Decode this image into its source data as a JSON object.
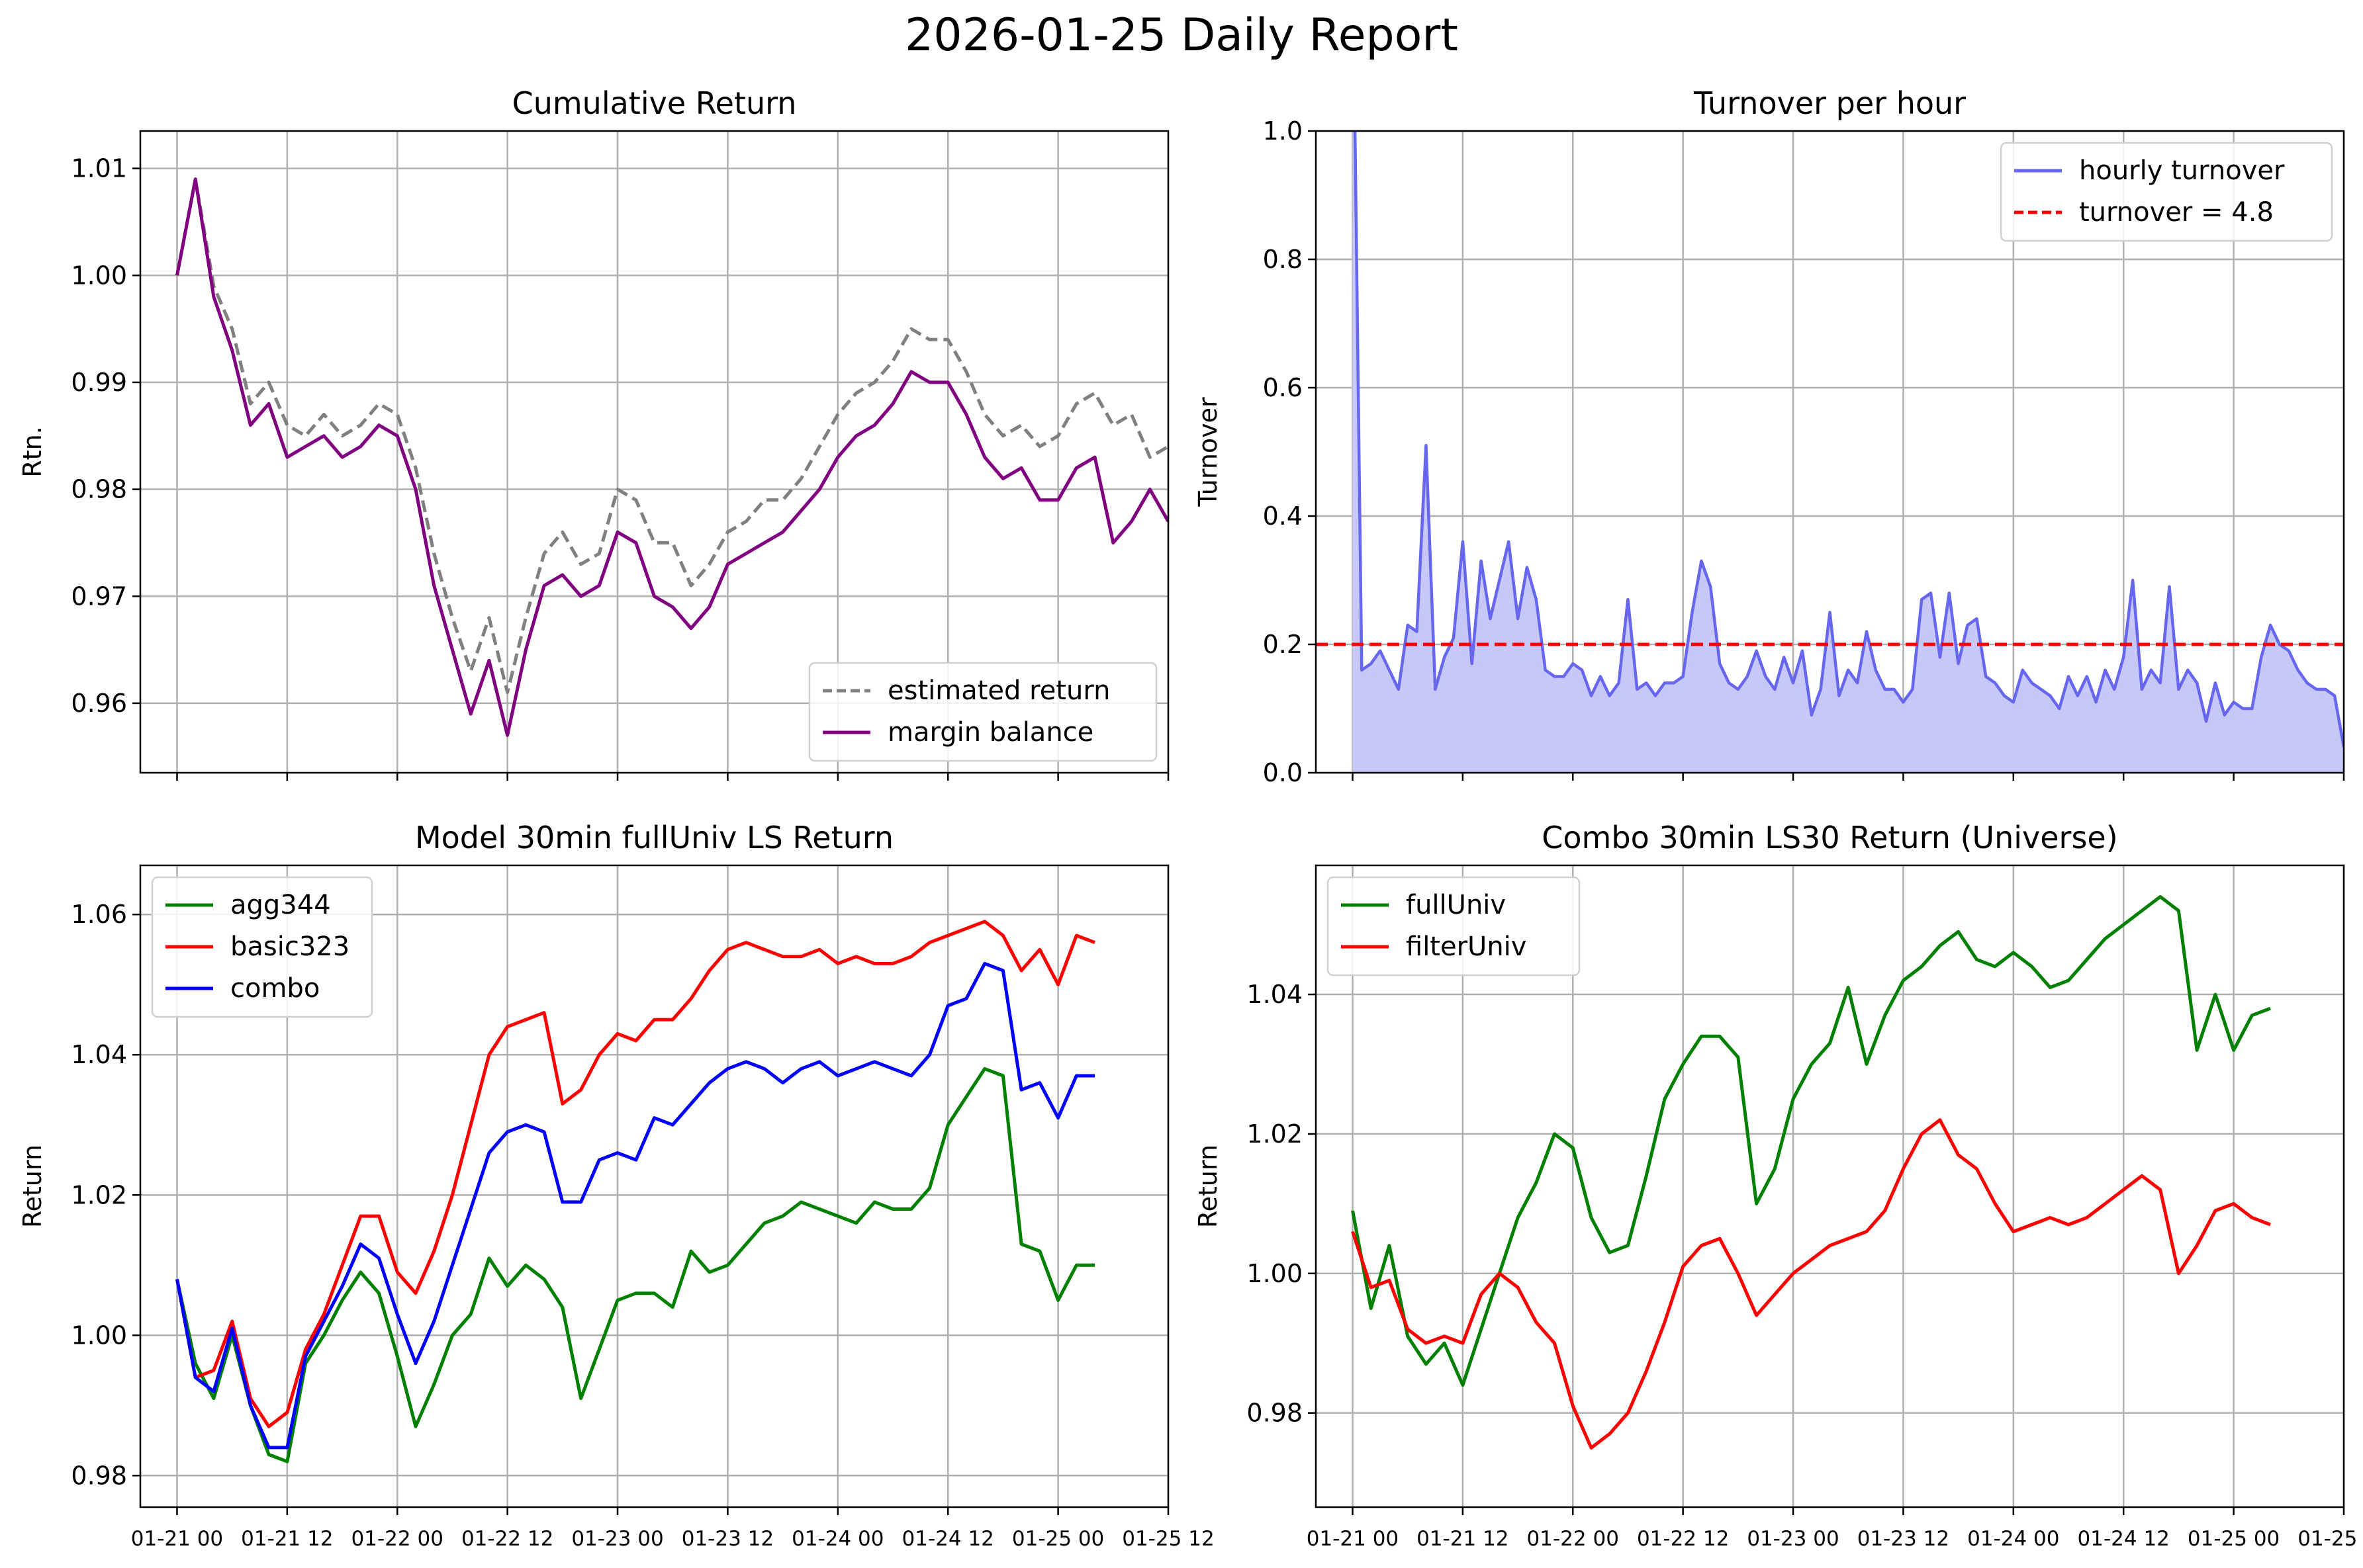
{
  "figure_title": "2026-01-25 Daily Report",
  "colors": {
    "estimated": "#808080",
    "margin": "#800080",
    "turnover": "#6666ee",
    "turnover_fill": "#c8c8f8",
    "threshold": "#ff0000",
    "agg344": "#008000",
    "basic323": "#ff0000",
    "combo": "#0000ff",
    "fullUniv": "#008000",
    "filterUniv": "#ff0000"
  },
  "x_ticks": [
    "01-21 00",
    "01-21 12",
    "01-22 00",
    "01-22 12",
    "01-23 00",
    "01-23 12",
    "01-24 00",
    "01-24 12",
    "01-25 00",
    "01-25 12"
  ],
  "chart_data": [
    {
      "id": "cum",
      "type": "line",
      "title": "Cumulative Return",
      "xlabel": "",
      "ylabel": "Rtn.",
      "xlim": [
        -4,
        108
      ],
      "ylim": [
        0.9535,
        1.0135
      ],
      "yticks": [
        "1.01",
        "1.00",
        "0.99",
        "0.98",
        "0.97",
        "0.96"
      ],
      "show_x_ticklabels": false,
      "legend": "lower right",
      "x_start": 0,
      "x_step": 2,
      "series": [
        {
          "name": "estimated return",
          "style": "dashed",
          "color_key": "estimated",
          "values": [
            1.0,
            1.009,
            0.999,
            0.995,
            0.988,
            0.99,
            0.986,
            0.985,
            0.987,
            0.985,
            0.986,
            0.988,
            0.987,
            0.982,
            0.974,
            0.968,
            0.963,
            0.968,
            0.961,
            0.968,
            0.974,
            0.976,
            0.973,
            0.974,
            0.98,
            0.979,
            0.975,
            0.975,
            0.971,
            0.973,
            0.976,
            0.977,
            0.979,
            0.979,
            0.981,
            0.984,
            0.987,
            0.989,
            0.99,
            0.992,
            0.995,
            0.994,
            0.994,
            0.991,
            0.987,
            0.985,
            0.986,
            0.984,
            0.985,
            0.988,
            0.989,
            0.986,
            0.987,
            0.983,
            0.984
          ]
        },
        {
          "name": "margin balance",
          "style": "solid",
          "color_key": "margin",
          "values": [
            1.0,
            1.009,
            0.998,
            0.993,
            0.986,
            0.988,
            0.983,
            0.984,
            0.985,
            0.983,
            0.984,
            0.986,
            0.985,
            0.98,
            0.971,
            0.965,
            0.959,
            0.964,
            0.957,
            0.965,
            0.971,
            0.972,
            0.97,
            0.971,
            0.976,
            0.975,
            0.97,
            0.969,
            0.967,
            0.969,
            0.973,
            0.974,
            0.975,
            0.976,
            0.978,
            0.98,
            0.983,
            0.985,
            0.986,
            0.988,
            0.991,
            0.99,
            0.99,
            0.987,
            0.983,
            0.981,
            0.982,
            0.979,
            0.979,
            0.982,
            0.983,
            0.975,
            0.977,
            0.98,
            0.977
          ]
        }
      ]
    },
    {
      "id": "turn",
      "type": "area",
      "title": "Turnover per hour",
      "xlabel": "",
      "ylabel": "Turnover",
      "xlim": [
        -4,
        108
      ],
      "ylim": [
        0.0,
        1.0
      ],
      "yticks": [
        "1.0",
        "0.8",
        "0.6",
        "0.4",
        "0.2",
        "0.0"
      ],
      "show_x_ticklabels": false,
      "legend": "upper right",
      "x_start": 0,
      "x_step": 1,
      "threshold": {
        "name": "turnover = 4.8",
        "value": 0.2
      },
      "series": [
        {
          "name": "hourly turnover",
          "style": "solid",
          "color_key": "turnover",
          "values": [
            1.3,
            0.16,
            0.17,
            0.19,
            0.16,
            0.13,
            0.23,
            0.22,
            0.51,
            0.13,
            0.18,
            0.21,
            0.36,
            0.17,
            0.33,
            0.24,
            0.3,
            0.36,
            0.24,
            0.32,
            0.27,
            0.16,
            0.15,
            0.15,
            0.17,
            0.16,
            0.12,
            0.15,
            0.12,
            0.14,
            0.27,
            0.13,
            0.14,
            0.12,
            0.14,
            0.14,
            0.15,
            0.25,
            0.33,
            0.29,
            0.17,
            0.14,
            0.13,
            0.15,
            0.19,
            0.15,
            0.13,
            0.18,
            0.14,
            0.19,
            0.09,
            0.13,
            0.25,
            0.12,
            0.16,
            0.14,
            0.22,
            0.16,
            0.13,
            0.13,
            0.11,
            0.13,
            0.27,
            0.28,
            0.18,
            0.28,
            0.17,
            0.23,
            0.24,
            0.15,
            0.14,
            0.12,
            0.11,
            0.16,
            0.14,
            0.13,
            0.12,
            0.1,
            0.15,
            0.12,
            0.15,
            0.11,
            0.16,
            0.13,
            0.18,
            0.3,
            0.13,
            0.16,
            0.14,
            0.29,
            0.13,
            0.16,
            0.14,
            0.08,
            0.14,
            0.09,
            0.11,
            0.1,
            0.1,
            0.18,
            0.23,
            0.2,
            0.19,
            0.16,
            0.14,
            0.13,
            0.13,
            0.12,
            0.04
          ]
        }
      ]
    },
    {
      "id": "model",
      "type": "line",
      "title": "Model 30min fullUniv LS Return",
      "xlabel": "",
      "ylabel": "Return",
      "xlim": [
        -4,
        108
      ],
      "ylim": [
        0.9755,
        1.067
      ],
      "yticks": [
        "1.06",
        "1.04",
        "1.02",
        "1.00",
        "0.98"
      ],
      "show_x_ticklabels": true,
      "legend": "upper left",
      "x_start": 0,
      "x_step": 2,
      "series": [
        {
          "name": "agg344",
          "style": "solid",
          "color_key": "agg344",
          "values": [
            1.008,
            0.996,
            0.991,
            1.0,
            0.99,
            0.983,
            0.982,
            0.996,
            1.0,
            1.005,
            1.009,
            1.006,
            0.997,
            0.987,
            0.993,
            1.0,
            1.003,
            1.011,
            1.007,
            1.01,
            1.008,
            1.004,
            0.991,
            0.998,
            1.005,
            1.006,
            1.006,
            1.004,
            1.012,
            1.009,
            1.01,
            1.013,
            1.016,
            1.017,
            1.019,
            1.018,
            1.017,
            1.016,
            1.019,
            1.018,
            1.018,
            1.021,
            1.03,
            1.034,
            1.038,
            1.037,
            1.013,
            1.012,
            1.005,
            1.01,
            1.01
          ]
        },
        {
          "name": "basic323",
          "style": "solid",
          "color_key": "basic323",
          "values": [
            1.008,
            0.994,
            0.995,
            1.002,
            0.991,
            0.987,
            0.989,
            0.998,
            1.003,
            1.01,
            1.017,
            1.017,
            1.009,
            1.006,
            1.012,
            1.02,
            1.03,
            1.04,
            1.044,
            1.045,
            1.046,
            1.033,
            1.035,
            1.04,
            1.043,
            1.042,
            1.045,
            1.045,
            1.048,
            1.052,
            1.055,
            1.056,
            1.055,
            1.054,
            1.054,
            1.055,
            1.053,
            1.054,
            1.053,
            1.053,
            1.054,
            1.056,
            1.057,
            1.058,
            1.059,
            1.057,
            1.052,
            1.055,
            1.05,
            1.057,
            1.056
          ]
        },
        {
          "name": "combo",
          "style": "solid",
          "color_key": "combo",
          "values": [
            1.008,
            0.994,
            0.992,
            1.001,
            0.99,
            0.984,
            0.984,
            0.997,
            1.002,
            1.007,
            1.013,
            1.011,
            1.003,
            0.996,
            1.002,
            1.01,
            1.018,
            1.026,
            1.029,
            1.03,
            1.029,
            1.019,
            1.019,
            1.025,
            1.026,
            1.025,
            1.031,
            1.03,
            1.033,
            1.036,
            1.038,
            1.039,
            1.038,
            1.036,
            1.038,
            1.039,
            1.037,
            1.038,
            1.039,
            1.038,
            1.037,
            1.04,
            1.047,
            1.048,
            1.053,
            1.052,
            1.035,
            1.036,
            1.031,
            1.037,
            1.037
          ]
        }
      ]
    },
    {
      "id": "combo",
      "type": "line",
      "title": "Combo 30min LS30 Return (Universe)",
      "xlabel": "",
      "ylabel": "Return",
      "xlim": [
        -4,
        108
      ],
      "ylim": [
        0.9665,
        1.0585
      ],
      "yticks": [
        "1.04",
        "1.02",
        "1.00",
        "0.98"
      ],
      "show_x_ticklabels": true,
      "legend": "upper left",
      "x_start": 0,
      "x_step": 2,
      "series": [
        {
          "name": "fullUniv",
          "style": "solid",
          "color_key": "fullUniv",
          "values": [
            1.009,
            0.995,
            1.004,
            0.991,
            0.987,
            0.99,
            0.984,
            0.992,
            1.0,
            1.008,
            1.013,
            1.02,
            1.018,
            1.008,
            1.003,
            1.004,
            1.014,
            1.025,
            1.03,
            1.034,
            1.034,
            1.031,
            1.01,
            1.015,
            1.025,
            1.03,
            1.033,
            1.041,
            1.03,
            1.037,
            1.042,
            1.044,
            1.047,
            1.049,
            1.045,
            1.044,
            1.046,
            1.044,
            1.041,
            1.042,
            1.045,
            1.048,
            1.05,
            1.052,
            1.054,
            1.052,
            1.032,
            1.04,
            1.032,
            1.037,
            1.038
          ]
        },
        {
          "name": "filterUniv",
          "style": "solid",
          "color_key": "filterUniv",
          "values": [
            1.006,
            0.998,
            0.999,
            0.992,
            0.99,
            0.991,
            0.99,
            0.997,
            1.0,
            0.998,
            0.993,
            0.99,
            0.981,
            0.975,
            0.977,
            0.98,
            0.986,
            0.993,
            1.001,
            1.004,
            1.005,
            1.0,
            0.994,
            0.997,
            1.0,
            1.002,
            1.004,
            1.005,
            1.006,
            1.009,
            1.015,
            1.02,
            1.022,
            1.017,
            1.015,
            1.01,
            1.006,
            1.007,
            1.008,
            1.007,
            1.008,
            1.01,
            1.012,
            1.014,
            1.012,
            1.0,
            1.004,
            1.009,
            1.01,
            1.008,
            1.007
          ]
        }
      ]
    }
  ]
}
